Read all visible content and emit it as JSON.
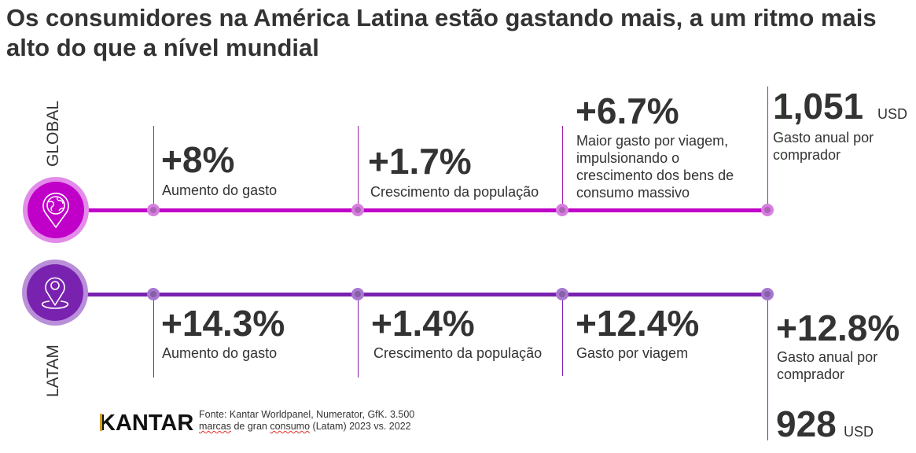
{
  "title": "Os consumidores na América Latina estão gastando mais, a um ritmo mais alto do que a nível mundial",
  "colors": {
    "global": "#c000c8",
    "global_ring": "#e38be9",
    "latam": "#7a22b0",
    "latam_ring": "#b98fd9",
    "text": "#333333"
  },
  "global": {
    "label": "GLOBAL",
    "icon": "globe-pin-icon",
    "stats": [
      {
        "value": "+8%",
        "desc": "Aumento do gasto"
      },
      {
        "value": "+1.7%",
        "desc": "Crescimento da população"
      },
      {
        "value": "+6.7%",
        "desc": "Maior gasto por viagem, impulsionando o crescimento dos bens de consumo massivo"
      },
      {
        "value": "1,051",
        "unit": "USD",
        "desc": "Gasto anual por comprador"
      }
    ]
  },
  "latam": {
    "label": "LATAM",
    "icon": "location-pin-icon",
    "stats": [
      {
        "value": "+14.3%",
        "desc": "Aumento do gasto"
      },
      {
        "value": "+1.4%",
        "desc": "Crescimento da população"
      },
      {
        "value": "+12.4%",
        "desc": "Gasto por viagem"
      },
      {
        "value": "+12.8%",
        "desc": "Gasto anual por comprador",
        "amount": "928",
        "unit": "USD"
      }
    ]
  },
  "footer": {
    "logo": "KANTAR",
    "source_line1": "Fonte: Kantar Worldpanel, Numerator, GfK. 3.500",
    "source_line2_a": "marcas",
    "source_line2_b": " de gran ",
    "source_line2_c": "consumo",
    "source_line2_d": " (Latam) 2023 vs. 2022"
  }
}
